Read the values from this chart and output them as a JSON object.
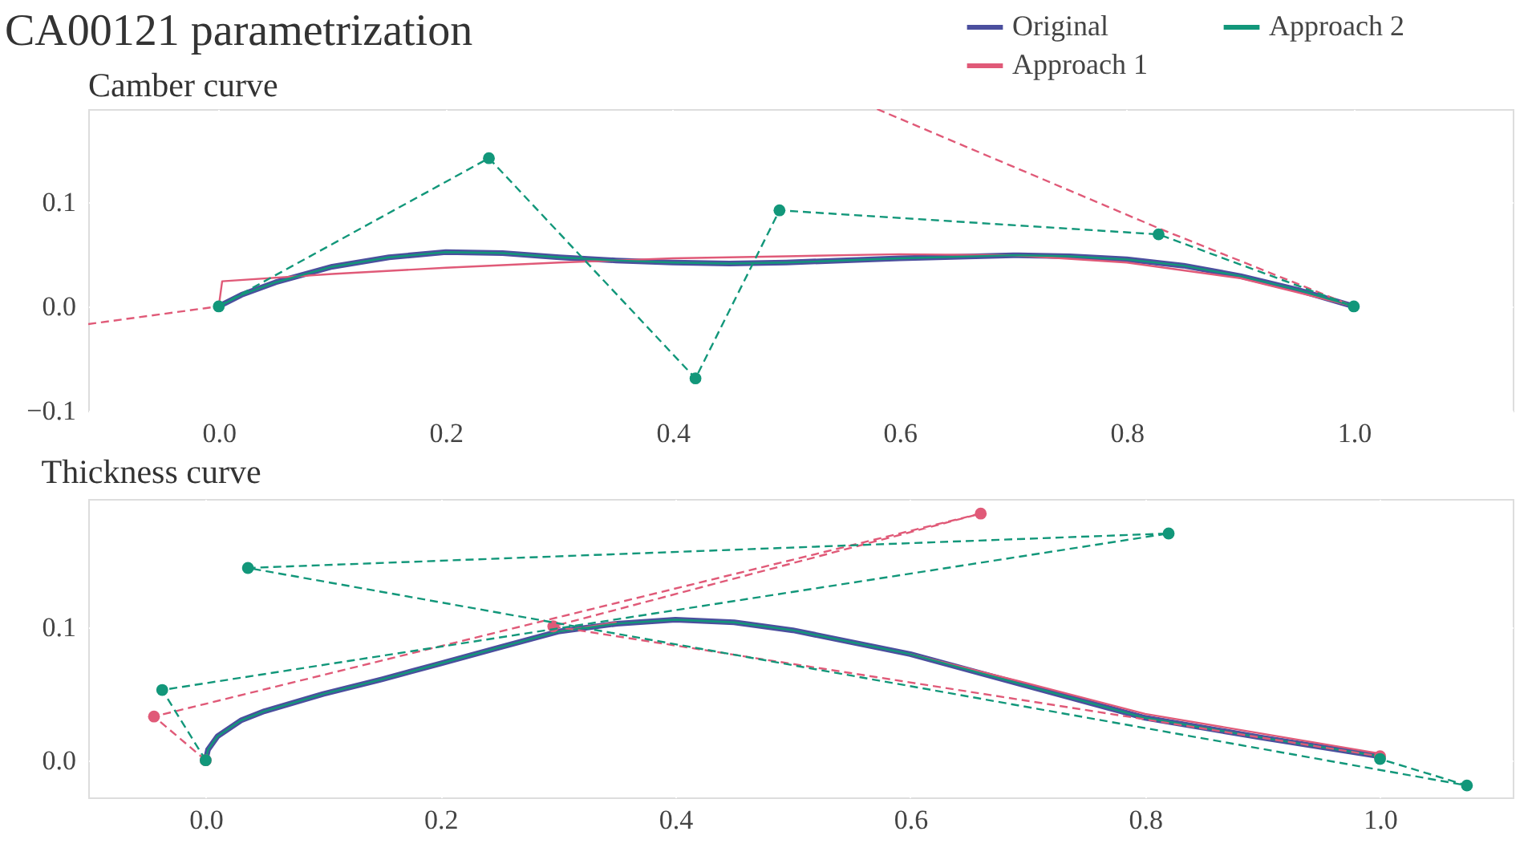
{
  "chart_data": [
    {
      "type": "line",
      "title": "CA00121 parametrization",
      "subtitle": "Camber curve",
      "xlim": [
        -0.115,
        1.14
      ],
      "ylim": [
        -0.1,
        0.189
      ],
      "xticks": [
        {
          "value": 0,
          "label": "0.0"
        },
        {
          "value": 0.2,
          "label": "0.2"
        },
        {
          "value": 0.4,
          "label": "0.4"
        },
        {
          "value": 0.6,
          "label": "0.6"
        },
        {
          "value": 0.8,
          "label": "0.8"
        },
        {
          "value": 1,
          "label": "1.0"
        }
      ],
      "yticks": [
        {
          "value": -0.1,
          "label": "−0.1"
        },
        {
          "value": 0,
          "label": "0.0"
        },
        {
          "value": 0.1,
          "label": "0.1"
        }
      ],
      "grid": true,
      "legend": "top right",
      "series": [
        {
          "name": "Original",
          "color": "#4b4f9e",
          "line_style": "solid",
          "marker": "none",
          "x": [
            0,
            0.02,
            0.05,
            0.1,
            0.15,
            0.2,
            0.25,
            0.3,
            0.35,
            0.4,
            0.45,
            0.5,
            0.6,
            0.7,
            0.75,
            0.8,
            0.85,
            0.9,
            0.95,
            1.0
          ],
          "values": [
            0,
            0.011,
            0.023,
            0.038,
            0.047,
            0.052,
            0.051,
            0.047,
            0.044,
            0.042,
            0.041,
            0.042,
            0.046,
            0.049,
            0.048,
            0.045,
            0.039,
            0.029,
            0.016,
            0
          ]
        },
        {
          "name": "Approach 1",
          "color": "#e05a78",
          "line_style": "solid",
          "marker": "none",
          "x": [
            0,
            0.003,
            0.1,
            0.2,
            0.3,
            0.4,
            0.5,
            0.6,
            0.7,
            0.8,
            0.9,
            1.0
          ],
          "values": [
            0,
            0.024,
            0.031,
            0.037,
            0.042,
            0.046,
            0.048,
            0.05,
            0.049,
            0.042,
            0.027,
            0
          ]
        },
        {
          "name": "Approach 2",
          "color": "#12977a",
          "line_style": "solid",
          "marker": "none",
          "x": [
            0,
            0.02,
            0.05,
            0.1,
            0.15,
            0.2,
            0.25,
            0.3,
            0.35,
            0.4,
            0.45,
            0.5,
            0.6,
            0.7,
            0.75,
            0.8,
            0.85,
            0.9,
            0.95,
            1.0
          ],
          "values": [
            0,
            0.011,
            0.023,
            0.038,
            0.047,
            0.052,
            0.051,
            0.047,
            0.044,
            0.042,
            0.041,
            0.042,
            0.046,
            0.049,
            0.048,
            0.045,
            0.039,
            0.029,
            0.016,
            0
          ]
        },
        {
          "color": "#e05a78",
          "line_style": "dashed",
          "marker": "none",
          "x": [
            -0.115,
            0,
            0.4,
            0.58,
            0.83,
            1.0
          ],
          "values": [
            -0.017,
            0,
            null,
            0.189,
            0.074,
            0
          ]
        },
        {
          "color": "#12977a",
          "line_style": "dashed",
          "marker": "circle",
          "x": [
            0,
            0.238,
            0.42,
            0.494,
            0.828,
            1.0
          ],
          "values": [
            0,
            0.142,
            -0.069,
            0.092,
            0.069,
            0
          ]
        }
      ]
    },
    {
      "type": "line",
      "title": "Thickness curve",
      "xlim": [
        -0.1,
        1.113
      ],
      "ylim": [
        -0.028,
        0.197
      ],
      "xticks": [
        {
          "value": 0,
          "label": "0.0"
        },
        {
          "value": 0.2,
          "label": "0.2"
        },
        {
          "value": 0.4,
          "label": "0.4"
        },
        {
          "value": 0.6,
          "label": "0.6"
        },
        {
          "value": 0.8,
          "label": "0.8"
        },
        {
          "value": 1,
          "label": "1.0"
        }
      ],
      "yticks": [
        {
          "value": 0,
          "label": "0.0"
        },
        {
          "value": 0.1,
          "label": "0.1"
        }
      ],
      "grid": true,
      "series": [
        {
          "name": "Original",
          "color": "#4b4f9e",
          "line_style": "solid",
          "marker": "none",
          "x": [
            0,
            0.002,
            0.01,
            0.03,
            0.05,
            0.1,
            0.15,
            0.2,
            0.25,
            0.3,
            0.35,
            0.4,
            0.45,
            0.5,
            0.6,
            0.7,
            0.8,
            0.9,
            1.0
          ],
          "values": [
            0,
            0.008,
            0.018,
            0.03,
            0.037,
            0.05,
            0.061,
            0.073,
            0.085,
            0.097,
            0.103,
            0.106,
            0.104,
            0.098,
            0.08,
            0.056,
            0.032,
            0.017,
            0.003
          ]
        },
        {
          "name": "Approach 1",
          "color": "#e05a78",
          "line_style": "solid",
          "marker": "none",
          "x": [
            0.3,
            0.35,
            0.5,
            0.6,
            0.7,
            0.8,
            0.9,
            1.0
          ],
          "values": [
            0.097,
            0.104,
            null,
            0.08,
            0.058,
            0.035,
            0.02,
            0.005
          ]
        },
        {
          "name": "Approach 2",
          "color": "#12977a",
          "line_style": "solid",
          "marker": "none",
          "x": [
            0,
            0.002,
            0.01,
            0.03,
            0.05,
            0.1,
            0.15,
            0.2,
            0.25,
            0.3,
            0.35,
            0.4,
            0.45,
            0.5,
            0.6,
            0.7,
            0.8,
            0.9,
            1.0
          ],
          "values": [
            0,
            0.008,
            0.018,
            0.03,
            0.037,
            0.05,
            0.061,
            0.073,
            0.085,
            0.097,
            0.103,
            0.106,
            0.104,
            0.098,
            0.08,
            0.056,
            0.032,
            0.017,
            0.003
          ]
        },
        {
          "color": "#e05a78",
          "line_style": "dashed",
          "marker": "circle",
          "x": [
            0,
            -0.044,
            0.66,
            0.296,
            1.0
          ],
          "values": [
            0,
            0.033,
            0.186,
            0.101,
            0.003
          ]
        },
        {
          "color": "#12977a",
          "line_style": "dashed",
          "marker": "circle",
          "x": [
            0,
            -0.037,
            0.82,
            0.036,
            1.074,
            1.0
          ],
          "values": [
            0,
            0.053,
            0.171,
            0.145,
            -0.019,
            0.001
          ]
        }
      ]
    }
  ]
}
